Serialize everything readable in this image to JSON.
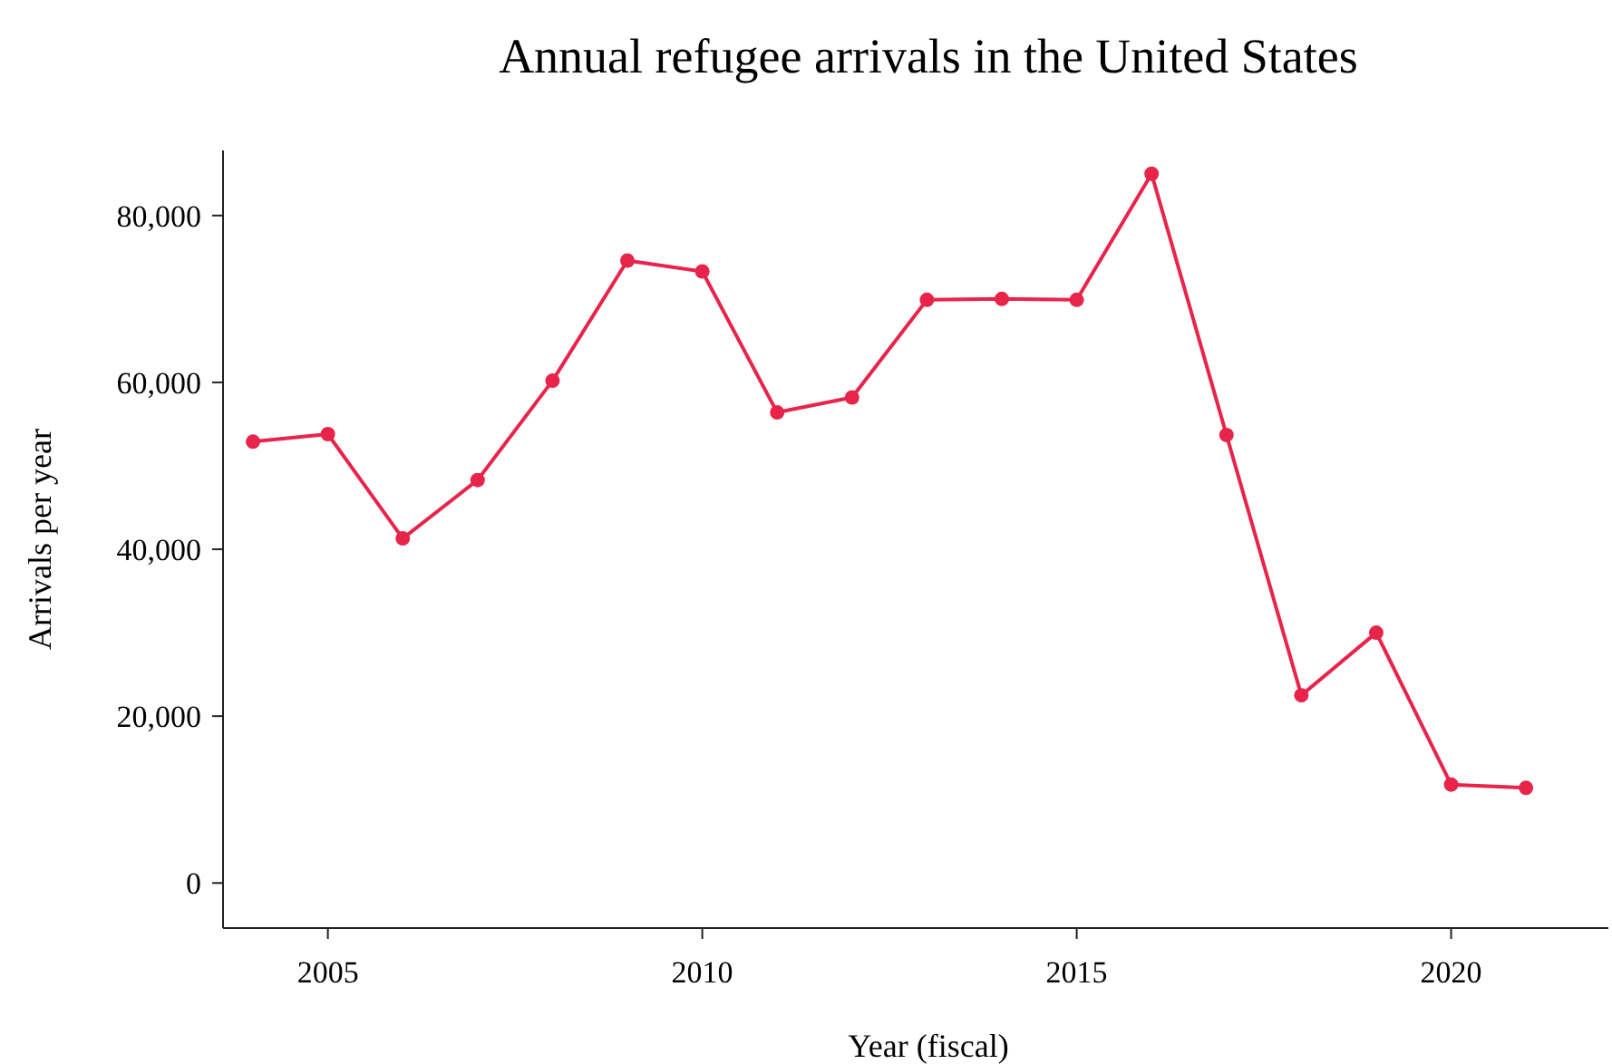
{
  "chart_data": {
    "type": "line",
    "title": "Annual refugee arrivals in the United States",
    "xlabel": "Year (fiscal)",
    "ylabel": "Arrivals per year",
    "x": [
      2004,
      2005,
      2006,
      2007,
      2008,
      2009,
      2010,
      2011,
      2012,
      2013,
      2014,
      2015,
      2016,
      2017,
      2018,
      2019,
      2020,
      2021
    ],
    "series": [
      {
        "color": "#e8244a",
        "values": [
          52900,
          53800,
          41300,
          48300,
          60200,
          74600,
          73300,
          56400,
          58200,
          69900,
          70000,
          69900,
          85000,
          53700,
          22500,
          30000,
          11800,
          11400
        ]
      }
    ],
    "xlim": [
      2003.6,
      2022.1
    ],
    "xticks": [
      2005,
      2010,
      2015,
      2020
    ],
    "ylim": [
      -5400,
      87800
    ],
    "yticks": [
      {
        "value": 0,
        "label": "0"
      },
      {
        "value": 20000,
        "label": "20,000"
      },
      {
        "value": 40000,
        "label": "40,000"
      },
      {
        "value": 60000,
        "label": "60,000"
      },
      {
        "value": 80000,
        "label": "80,000"
      }
    ],
    "marker": "circle",
    "line_style": "solid"
  }
}
